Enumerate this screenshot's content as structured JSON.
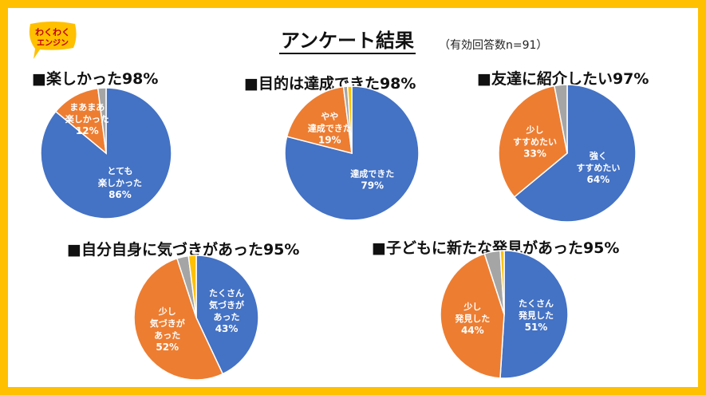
{
  "logo": {
    "line1": "わくわく",
    "line2": "エンジン"
  },
  "title": "アンケート結果",
  "subtitle": "（有効回答数n=91）",
  "chart_data": [
    {
      "type": "pie",
      "title": "■楽しかった98%",
      "slices": [
        {
          "label": [
            "とても",
            "楽しかった",
            "86%"
          ],
          "value": 86,
          "color": "#4472C4"
        },
        {
          "label": [
            "まあまあ",
            "楽しかった",
            "12%"
          ],
          "value": 12,
          "color": "#ED7D31"
        },
        {
          "label": [],
          "value": 2,
          "color": "#A5A5A5"
        }
      ]
    },
    {
      "type": "pie",
      "title": "■目的は達成できた98%",
      "slices": [
        {
          "label": [
            "達成できた",
            "79%"
          ],
          "value": 79,
          "color": "#4472C4"
        },
        {
          "label": [
            "やや",
            "達成できた",
            "19%"
          ],
          "value": 19,
          "color": "#ED7D31"
        },
        {
          "label": [],
          "value": 1,
          "color": "#A5A5A5"
        },
        {
          "label": [],
          "value": 1,
          "color": "#FFC000"
        }
      ]
    },
    {
      "type": "pie",
      "title": "■友達に紹介したい97%",
      "slices": [
        {
          "label": [
            "強く",
            "すすめたい",
            "64%"
          ],
          "value": 64,
          "color": "#4472C4"
        },
        {
          "label": [
            "少し",
            "すすめたい",
            "33%"
          ],
          "value": 33,
          "color": "#ED7D31"
        },
        {
          "label": [],
          "value": 3,
          "color": "#A5A5A5"
        }
      ]
    },
    {
      "type": "pie",
      "title": "■自分自身に気づきがあった95%",
      "slices": [
        {
          "label": [
            "たくさん",
            "気づきが",
            "あった",
            "43%"
          ],
          "value": 43,
          "color": "#4472C4"
        },
        {
          "label": [
            "少し",
            "気づきが",
            "あった",
            "52%"
          ],
          "value": 52,
          "color": "#ED7D31"
        },
        {
          "label": [],
          "value": 3,
          "color": "#A5A5A5"
        },
        {
          "label": [],
          "value": 2,
          "color": "#FFC000"
        }
      ]
    },
    {
      "type": "pie",
      "title": "■子どもに新たな発見があった95%",
      "slices": [
        {
          "label": [
            "たくさん",
            "発見した",
            "51%"
          ],
          "value": 51,
          "color": "#4472C4"
        },
        {
          "label": [
            "少し",
            "発見した",
            "44%"
          ],
          "value": 44,
          "color": "#ED7D31"
        },
        {
          "label": [],
          "value": 4,
          "color": "#A5A5A5"
        },
        {
          "label": [],
          "value": 1,
          "color": "#FFC000"
        }
      ]
    }
  ]
}
